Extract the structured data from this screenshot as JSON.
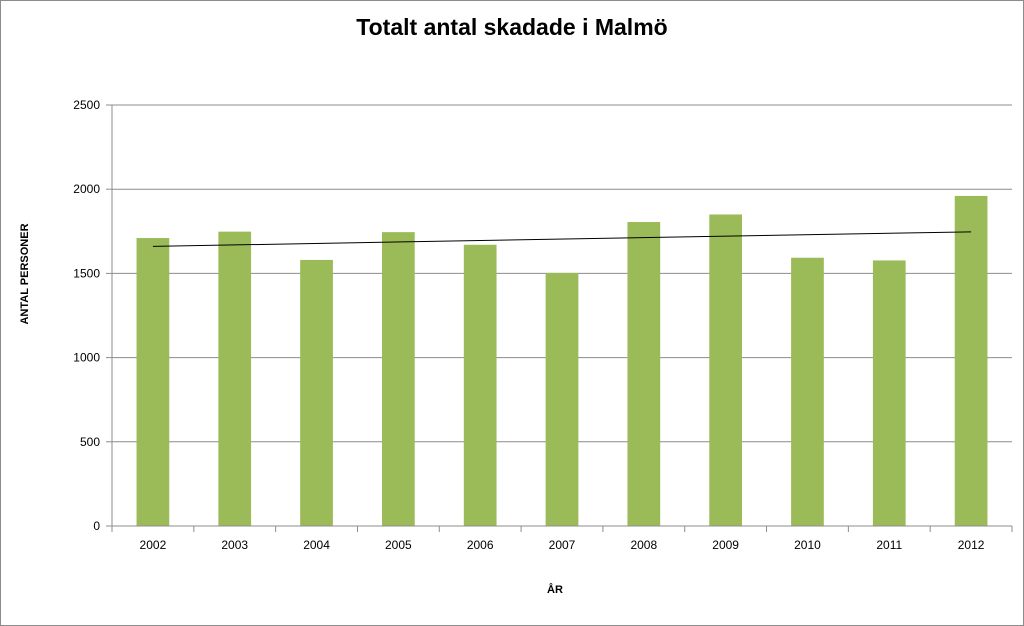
{
  "chart_data": {
    "type": "bar",
    "title": "Totalt antal skadade i Malmö",
    "xlabel": "ÅR",
    "ylabel": "ANTAL PERSONER",
    "categories": [
      "2002",
      "2003",
      "2004",
      "2005",
      "2006",
      "2007",
      "2008",
      "2009",
      "2010",
      "2011",
      "2012"
    ],
    "series": [
      {
        "values": [
          1710,
          1748,
          1580,
          1745,
          1670,
          1503,
          1805,
          1850,
          1593,
          1577,
          1960
        ],
        "color": "#9bbb59"
      }
    ],
    "trendline": {
      "type": "linear",
      "color": "#000000"
    },
    "ylim": [
      0,
      2500
    ],
    "yticks": [
      0,
      500,
      1000,
      1500,
      2000,
      2500
    ],
    "grid": true,
    "legend": "none"
  }
}
